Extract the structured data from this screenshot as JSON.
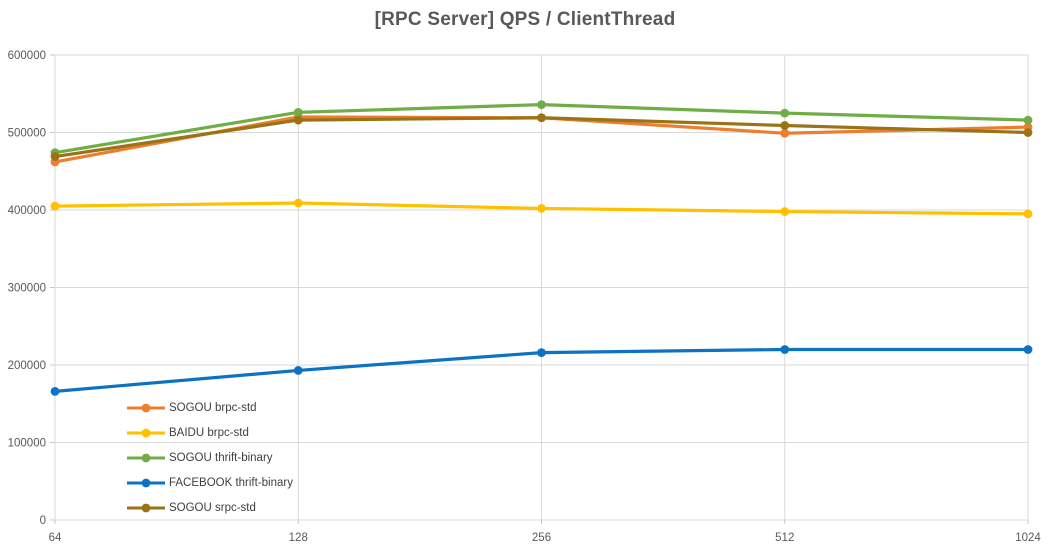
{
  "chart_data": {
    "type": "line",
    "title": "[RPC Server] QPS / ClientThread",
    "categories": [
      "64",
      "128",
      "256",
      "512",
      "1024"
    ],
    "series": [
      {
        "name": "SOGOU brpc-std",
        "color": "#ED7D31",
        "values": [
          462000,
          520000,
          519000,
          499000,
          507000
        ]
      },
      {
        "name": "BAIDU brpc-std",
        "color": "#FFC000",
        "values": [
          405000,
          409000,
          402000,
          398000,
          395000
        ]
      },
      {
        "name": "SOGOU thrift-binary",
        "color": "#70AD47",
        "values": [
          474000,
          526000,
          536000,
          525000,
          516000
        ]
      },
      {
        "name": "FACEBOOK thrift-binary",
        "color": "#0C72C4",
        "values": [
          166000,
          193000,
          216000,
          220000,
          220000
        ]
      },
      {
        "name": "SOGOU srpc-std",
        "color": "#997316",
        "values": [
          469000,
          516000,
          519000,
          509000,
          500000
        ]
      }
    ],
    "x_axis": {
      "tick_labels": [
        "64",
        "128",
        "256",
        "512",
        "1024"
      ]
    },
    "y_axis": {
      "min": 0,
      "max": 600000,
      "step": 100000,
      "tick_labels": [
        "0",
        "100000",
        "200000",
        "300000",
        "400000",
        "500000",
        "600000"
      ]
    },
    "grid": true,
    "legend_position": "inside-bottom-left",
    "style": {
      "title_color": "#595959",
      "axis_label_color": "#595959",
      "legend_text_color": "#404040",
      "gridline_color": "#D9D9D9",
      "tick_color": "#C6C6C6",
      "background": "#FFFFFF"
    }
  }
}
